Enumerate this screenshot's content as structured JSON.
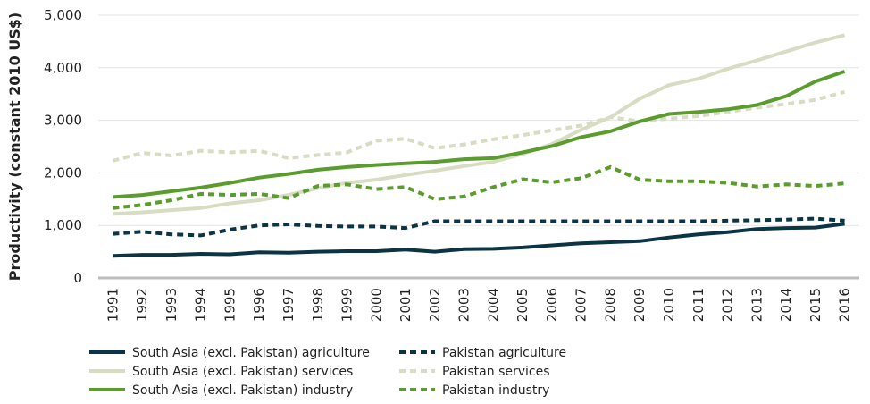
{
  "chart_data": {
    "type": "line",
    "ylabel": "Productivity (constant 2010 US$)",
    "xlabel": "",
    "ylim": [
      0,
      5000
    ],
    "yticks": [
      0,
      1000,
      2000,
      3000,
      4000,
      5000
    ],
    "ytick_labels": [
      "0",
      "1,000",
      "2,000",
      "3,000",
      "4,000",
      "5,000"
    ],
    "x": [
      "1991",
      "1992",
      "1993",
      "1994",
      "1995",
      "1996",
      "1997",
      "1998",
      "1999",
      "2000",
      "2001",
      "2002",
      "2003",
      "2004",
      "2005",
      "2006",
      "2007",
      "2008",
      "2009",
      "2010",
      "2011",
      "2012",
      "2013",
      "2014",
      "2015",
      "2016"
    ],
    "grid": "horizontal",
    "legend_position": "bottom",
    "series": [
      {
        "name": "South Asia (excl. Pakistan) agriculture",
        "color": "#0b3545",
        "style": "solid",
        "values": [
          420,
          440,
          440,
          460,
          450,
          490,
          480,
          500,
          510,
          510,
          540,
          500,
          550,
          555,
          580,
          620,
          660,
          680,
          700,
          770,
          830,
          870,
          930,
          950,
          960,
          1030
        ]
      },
      {
        "name": "Pakistan agriculture",
        "color": "#0b3545",
        "style": "dashed",
        "values": [
          840,
          880,
          830,
          810,
          920,
          1000,
          1020,
          990,
          980,
          980,
          950,
          1080,
          1080,
          1080,
          1080,
          1080,
          1080,
          1080,
          1080,
          1080,
          1080,
          1090,
          1100,
          1110,
          1130,
          1090
        ]
      },
      {
        "name": "South Asia (excl. Pakistan) services",
        "color": "#d8dcc3",
        "style": "solid",
        "values": [
          1220,
          1250,
          1290,
          1330,
          1420,
          1480,
          1580,
          1710,
          1810,
          1870,
          1960,
          2040,
          2130,
          2210,
          2360,
          2550,
          2820,
          3060,
          3410,
          3670,
          3790,
          3980,
          4140,
          4310,
          4480,
          4620
        ]
      },
      {
        "name": "Pakistan services",
        "color": "#d8dcc3",
        "style": "dashed",
        "values": [
          2230,
          2380,
          2330,
          2420,
          2390,
          2420,
          2280,
          2340,
          2390,
          2610,
          2650,
          2470,
          2540,
          2640,
          2720,
          2810,
          2900,
          3060,
          2980,
          3030,
          3080,
          3160,
          3240,
          3310,
          3390,
          3540
        ]
      },
      {
        "name": "South Asia (excl. Pakistan) industry",
        "color": "#5a9c2e",
        "style": "solid",
        "values": [
          1540,
          1580,
          1650,
          1720,
          1810,
          1910,
          1980,
          2060,
          2110,
          2150,
          2180,
          2210,
          2260,
          2280,
          2390,
          2510,
          2680,
          2790,
          2980,
          3120,
          3160,
          3210,
          3290,
          3460,
          3740,
          3930
        ]
      },
      {
        "name": "Pakistan industry",
        "color": "#5a9c2e",
        "style": "dashed",
        "values": [
          1330,
          1390,
          1480,
          1600,
          1580,
          1600,
          1520,
          1750,
          1780,
          1690,
          1730,
          1500,
          1550,
          1730,
          1880,
          1820,
          1900,
          2110,
          1870,
          1840,
          1840,
          1810,
          1740,
          1780,
          1750,
          1800
        ]
      }
    ]
  }
}
